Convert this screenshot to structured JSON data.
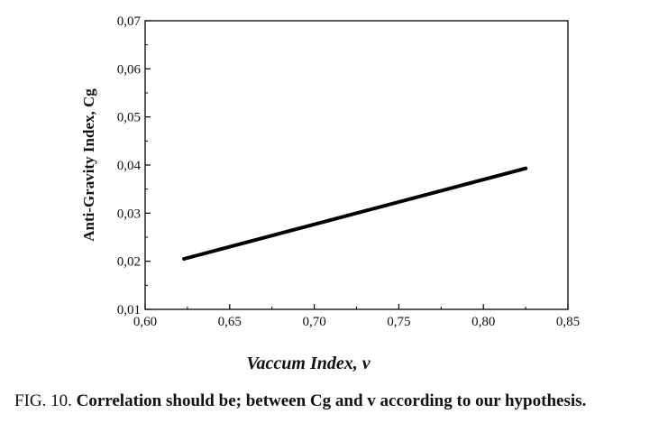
{
  "chart_data": {
    "type": "line",
    "xlabel": "Vaccum Index, v",
    "ylabel": "Anti-Gravity Index, Cg",
    "xlim": [
      0.6,
      0.85
    ],
    "ylim": [
      0.01,
      0.07
    ],
    "xticks": [
      "0,60",
      "0,65",
      "0,70",
      "0,75",
      "0,80",
      "0,85"
    ],
    "yticks": [
      "0,01",
      "0,02",
      "0,03",
      "0,04",
      "0,05",
      "0,06",
      "0,07"
    ],
    "grid": false,
    "series": [
      {
        "x": [
          0.623,
          0.825
        ],
        "y": [
          0.0205,
          0.0393
        ]
      }
    ]
  },
  "caption": {
    "prefix": "FIG. 10.",
    "text": "Correlation should be; between Cg and v according to our hypothesis."
  }
}
